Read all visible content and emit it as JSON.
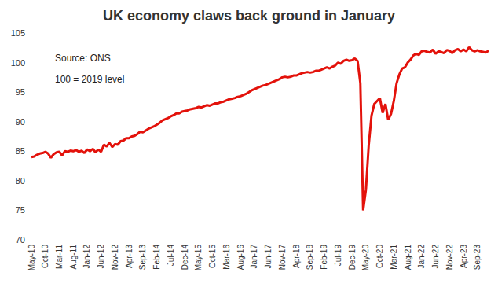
{
  "chart_data": {
    "type": "line",
    "title": "UK economy claws back ground in January",
    "annotations": [
      "Source: ONS",
      "100 = 2019 level"
    ],
    "categories": [
      "May-10",
      null,
      null,
      null,
      null,
      "Oct-10",
      null,
      null,
      null,
      null,
      "Mar-11",
      null,
      null,
      null,
      null,
      "Aug-11",
      null,
      null,
      null,
      null,
      "Jan-12",
      null,
      null,
      null,
      null,
      "Jun-12",
      null,
      null,
      null,
      null,
      "Nov-12",
      null,
      null,
      null,
      null,
      "Apr-13",
      null,
      null,
      null,
      null,
      "Sep-13",
      null,
      null,
      null,
      null,
      "Feb-14",
      null,
      null,
      null,
      null,
      "Jul-14",
      null,
      null,
      null,
      null,
      "Dec-14",
      null,
      null,
      null,
      null,
      "May-15",
      null,
      null,
      null,
      null,
      "Oct-15",
      null,
      null,
      null,
      null,
      "Mar-16",
      null,
      null,
      null,
      null,
      "Aug-16",
      null,
      null,
      null,
      null,
      "Jan-17",
      null,
      null,
      null,
      null,
      "Jun-17",
      null,
      null,
      null,
      null,
      "Nov-17",
      null,
      null,
      null,
      null,
      "Apr-18",
      null,
      null,
      null,
      null,
      "Sep-18",
      null,
      null,
      null,
      null,
      "Feb-19",
      null,
      null,
      null,
      null,
      "Jul-19",
      null,
      null,
      null,
      null,
      "Dec-19",
      null,
      null,
      null,
      null,
      "May-20",
      null,
      null,
      null,
      null,
      "Oct-20",
      null,
      null,
      null,
      null,
      "Mar-21",
      null,
      null,
      null,
      null,
      "Aug-21",
      null,
      null,
      null,
      null,
      "Jan-22",
      null,
      null,
      null,
      null,
      "Jun-22",
      null,
      null,
      null,
      null,
      "Nov-22",
      null,
      null,
      null,
      null,
      "Apr-23",
      null,
      null,
      null,
      null,
      "Sep-23",
      null,
      null,
      null,
      null
    ],
    "values": [
      84.0,
      84.1,
      84.4,
      84.6,
      84.7,
      84.9,
      84.6,
      83.9,
      84.5,
      84.8,
      84.9,
      84.3,
      85.0,
      84.9,
      85.1,
      85.0,
      85.2,
      84.9,
      85.1,
      84.7,
      85.3,
      85.0,
      85.4,
      84.8,
      85.3,
      84.9,
      86.1,
      85.8,
      86.4,
      85.7,
      86.2,
      86.1,
      86.7,
      86.8,
      87.2,
      87.2,
      87.5,
      87.6,
      87.9,
      88.3,
      88.2,
      88.5,
      88.8,
      89.0,
      89.2,
      89.5,
      89.8,
      90.2,
      90.4,
      90.6,
      90.9,
      91.1,
      91.4,
      91.4,
      91.7,
      91.8,
      91.9,
      92.1,
      92.2,
      92.3,
      92.5,
      92.4,
      92.6,
      92.8,
      92.7,
      92.9,
      93.1,
      93.1,
      93.3,
      93.4,
      93.6,
      93.8,
      93.9,
      94.0,
      94.2,
      94.3,
      94.5,
      94.7,
      95.0,
      95.3,
      95.5,
      95.7,
      95.9,
      96.1,
      96.2,
      96.4,
      96.6,
      96.8,
      97.0,
      97.2,
      97.5,
      97.6,
      97.5,
      97.6,
      97.8,
      97.8,
      98.0,
      98.2,
      98.3,
      98.4,
      98.3,
      98.4,
      98.6,
      98.6,
      98.8,
      99.0,
      99.2,
      99.0,
      99.3,
      99.5,
      100.0,
      99.8,
      100.3,
      100.5,
      100.3,
      100.4,
      100.7,
      100.3,
      96.5,
      75.0,
      78.5,
      86.0,
      91.0,
      93.0,
      93.5,
      94.0,
      91.5,
      93.0,
      90.3,
      91.3,
      93.5,
      96.5,
      98.0,
      99.0,
      99.2,
      100.0,
      100.5,
      101.2,
      101.5,
      101.3,
      101.9,
      102.0,
      101.8,
      101.7,
      102.2,
      101.5,
      101.9,
      101.8,
      101.6,
      102.1,
      102.0,
      101.6,
      102.1,
      102.3,
      101.9,
      102.2,
      101.9,
      102.6,
      102.1,
      101.9,
      102.1,
      101.9,
      101.8,
      101.7,
      102.0
    ],
    "color": "#e3120b",
    "ylim": [
      70,
      105
    ],
    "yticks": [
      70,
      75,
      80,
      85,
      90,
      95,
      100,
      105
    ],
    "grid": false
  }
}
